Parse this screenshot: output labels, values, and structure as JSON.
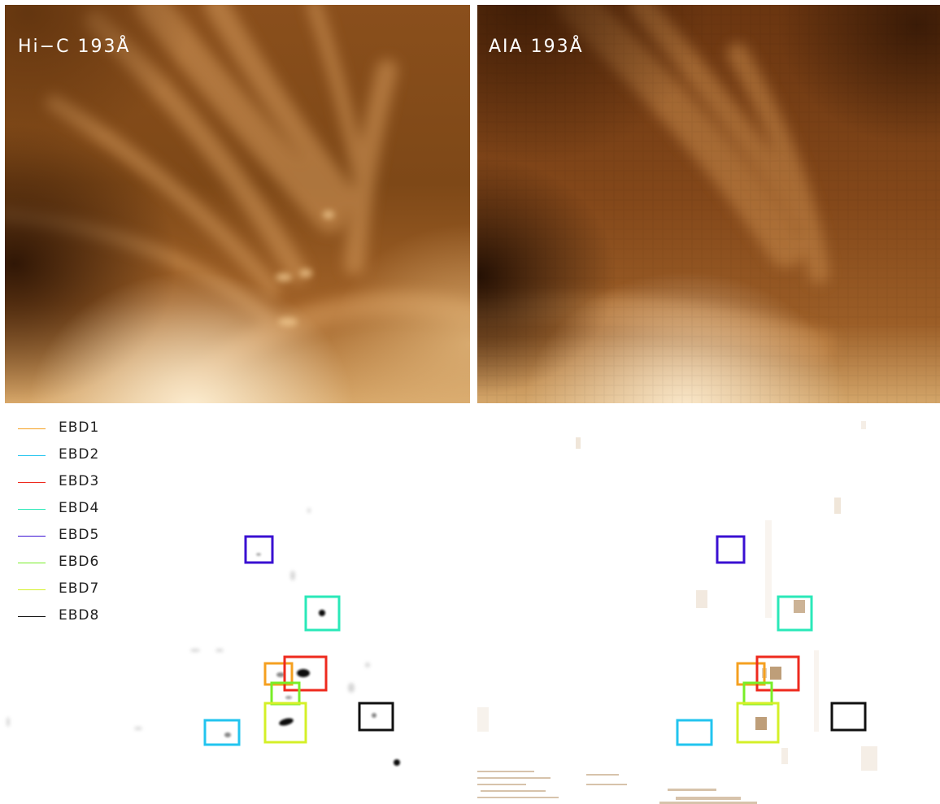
{
  "panels": {
    "hic_label": "Hi−C 193Å",
    "aia_label": "AIA 193Å"
  },
  "legend": [
    {
      "name": "EBD1",
      "color": "#f5a020"
    },
    {
      "name": "EBD2",
      "color": "#22c4ef"
    },
    {
      "name": "EBD3",
      "color": "#ee2a1e"
    },
    {
      "name": "EBD4",
      "color": "#2ae8b8"
    },
    {
      "name": "EBD5",
      "color": "#3a10d2"
    },
    {
      "name": "EBD6",
      "color": "#78ee28"
    },
    {
      "name": "EBD7",
      "color": "#d4f028"
    },
    {
      "name": "EBD8",
      "color": "#111111"
    }
  ]
}
